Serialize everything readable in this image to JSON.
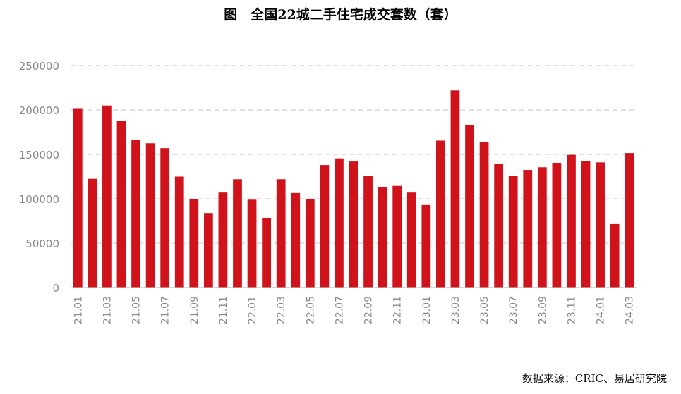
{
  "chart_data": {
    "type": "bar",
    "title": "图　全国22城二手住宅成交套数（套）",
    "source": "数据来源：CRIC、易居研究院",
    "xlabel": "",
    "ylabel": "",
    "ylim": [
      0,
      250000
    ],
    "yticks": [
      0,
      50000,
      100000,
      150000,
      200000,
      250000
    ],
    "grid": true,
    "legend": "none",
    "bar_color": "#d0121b",
    "grid_color": "#d0d0d0",
    "tick_color": "#8a8a8a",
    "categories": [
      "21.01",
      "21.02",
      "21.03",
      "21.04",
      "21.05",
      "21.06",
      "21.07",
      "21.08",
      "21.09",
      "21.10",
      "21.11",
      "21.12",
      "22.01",
      "22.02",
      "22.03",
      "22.04",
      "22.05",
      "22.06",
      "22.07",
      "22.08",
      "22.09",
      "22.10",
      "22.11",
      "22.12",
      "23.01",
      "23.02",
      "23.03",
      "23.04",
      "23.05",
      "23.06",
      "23.07",
      "23.08",
      "23.09",
      "23.10",
      "23.11",
      "23.12",
      "24.01",
      "24.02",
      "24.03"
    ],
    "tick_labels_shown": [
      "21.01",
      "21.03",
      "21.05",
      "21.07",
      "21.09",
      "21.11",
      "22.01",
      "22.03",
      "22.05",
      "22.07",
      "22.09",
      "22.11",
      "23.01",
      "23.03",
      "23.05",
      "23.07",
      "23.09",
      "23.11",
      "24.01",
      "24.03"
    ],
    "values": [
      202000,
      122500,
      205000,
      187500,
      166000,
      162500,
      157000,
      125000,
      100000,
      84000,
      107000,
      122000,
      99000,
      78000,
      122000,
      106500,
      100000,
      138000,
      145500,
      142000,
      126000,
      113500,
      114500,
      107000,
      93000,
      165500,
      222000,
      183000,
      164000,
      139500,
      126000,
      132500,
      135500,
      140500,
      149500,
      142500,
      141000,
      71500,
      151500
    ]
  }
}
